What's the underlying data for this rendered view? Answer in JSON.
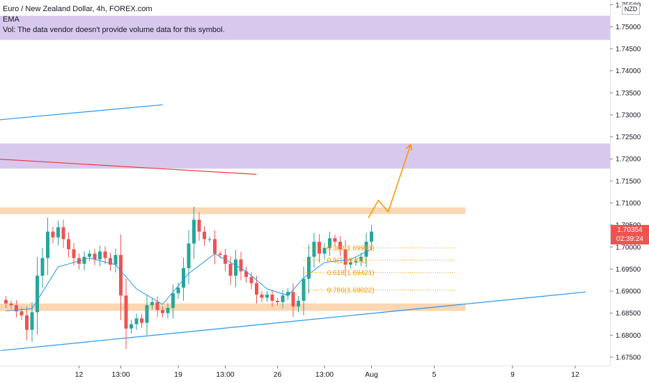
{
  "header": {
    "title": "Euro / New Zealand Dollar, 4h, FOREX.com",
    "ema_label": "EMA",
    "vol_label": "Vol: The data vendor doesn't provide volume data for this symbol."
  },
  "price_scale": {
    "currency": "NZD",
    "current_price": "1.70354",
    "countdown": "02:39:24"
  },
  "colors": {
    "up": "#26a69a",
    "down": "#ef5350",
    "zone_purple": "#d9c8ee",
    "zone_orange": "#fbd7b3",
    "ema": "#2196f3",
    "trendline_blue": "#2196f3",
    "trendline_red": "#ef3b3b",
    "fib": "#ff9800",
    "projection": "#ff9800"
  },
  "chart_data": {
    "type": "candlestick",
    "symbol": "EURNZD",
    "ylim": [
      1.6742,
      1.7556
    ],
    "y_ticks": [
      "1.75500",
      "1.75000",
      "1.74500",
      "1.74000",
      "1.73500",
      "1.73000",
      "1.72500",
      "1.72000",
      "1.71500",
      "1.71000",
      "1.70500",
      "1.70000",
      "1.69500",
      "1.69000",
      "1.68500",
      "1.68000",
      "1.67500"
    ],
    "x_ticks": [
      {
        "label": "12",
        "bar": 14
      },
      {
        "label": "13:00",
        "bar": 22
      },
      {
        "label": "19",
        "bar": 33
      },
      {
        "label": "13:00",
        "bar": 42
      },
      {
        "label": "26",
        "bar": 52
      },
      {
        "label": "13:00",
        "bar": 61
      },
      {
        "label": "Aug",
        "bar": 70
      },
      {
        "label": "5",
        "bar": 82
      },
      {
        "label": "9",
        "bar": 97
      },
      {
        "label": "12",
        "bar": 109
      }
    ],
    "bars_visible": 71,
    "closes": [
      1.6872,
      1.6868,
      1.6854,
      1.6845,
      1.6812,
      1.6852,
      1.6935,
      1.6975,
      1.7035,
      1.7022,
      1.7045,
      1.7018,
      1.6995,
      1.6975,
      1.6962,
      1.6978,
      1.6985,
      1.6972,
      1.699,
      1.6975,
      1.696,
      1.6982,
      1.689,
      1.6815,
      1.6825,
      1.6838,
      1.6828,
      1.6868,
      1.6875,
      1.6857,
      1.685,
      1.6862,
      1.6895,
      1.6908,
      1.6952,
      1.7008,
      1.7062,
      1.7035,
      1.7018,
      1.7018,
      1.6985,
      1.6982,
      1.6962,
      1.6935,
      1.6972,
      1.6945,
      1.6932,
      1.6918,
      1.6892,
      1.6885,
      1.6892,
      1.6878,
      1.6875,
      1.689,
      1.6898,
      1.6865,
      1.6878,
      1.6928,
      1.6978,
      1.7012,
      1.6985,
      1.6998,
      1.702,
      1.7012,
      1.6995,
      1.696,
      1.6965,
      1.6968,
      1.6978,
      1.7012,
      1.7035
    ],
    "ema": [
      {
        "bar": 0,
        "value": 1.6855
      },
      {
        "bar": 5,
        "value": 1.686
      },
      {
        "bar": 10,
        "value": 1.6955
      },
      {
        "bar": 16,
        "value": 1.6975
      },
      {
        "bar": 21,
        "value": 1.696
      },
      {
        "bar": 25,
        "value": 1.6905
      },
      {
        "bar": 30,
        "value": 1.687
      },
      {
        "bar": 35,
        "value": 1.694
      },
      {
        "bar": 40,
        "value": 1.6985
      },
      {
        "bar": 46,
        "value": 1.6945
      },
      {
        "bar": 50,
        "value": 1.6905
      },
      {
        "bar": 54,
        "value": 1.689
      },
      {
        "bar": 57,
        "value": 1.693
      },
      {
        "bar": 61,
        "value": 1.6965
      },
      {
        "bar": 66,
        "value": 1.6972
      },
      {
        "bar": 70,
        "value": 1.6995
      }
    ],
    "zones": [
      {
        "kind": "purple",
        "from": 1.747,
        "to": 1.7525
      },
      {
        "kind": "purple",
        "from": 1.7178,
        "to": 1.7235
      },
      {
        "kind": "orange",
        "from": 1.7075,
        "to": 1.709
      },
      {
        "kind": "orange",
        "from": 1.6855,
        "to": 1.6872
      }
    ],
    "trendlines": [
      {
        "color": "blue",
        "from": {
          "bar": -2,
          "value": 1.7288
        },
        "to": {
          "bar": 30,
          "value": 1.7323
        }
      },
      {
        "color": "red",
        "from": {
          "bar": -2,
          "value": 1.72
        },
        "to": {
          "bar": 48,
          "value": 1.7165
        }
      },
      {
        "color": "blue",
        "from": {
          "bar": -1,
          "value": 1.6765
        },
        "to": {
          "bar": 111,
          "value": 1.6898
        }
      }
    ],
    "fibonacci": [
      {
        "label": "0.382(1.69981)",
        "value": 1.69981
      },
      {
        "label": "0.5(1.69701)",
        "value": 1.69701
      },
      {
        "label": "0.618(1.69421)",
        "value": 1.69421
      },
      {
        "label": "0.786(1.69022)",
        "value": 1.69022
      }
    ],
    "projection": [
      {
        "bar": 69.4,
        "value": 1.7066
      },
      {
        "bar": 71.3,
        "value": 1.7106
      },
      {
        "bar": 73.2,
        "value": 1.708
      },
      {
        "bar": 77.5,
        "value": 1.7233
      }
    ]
  }
}
